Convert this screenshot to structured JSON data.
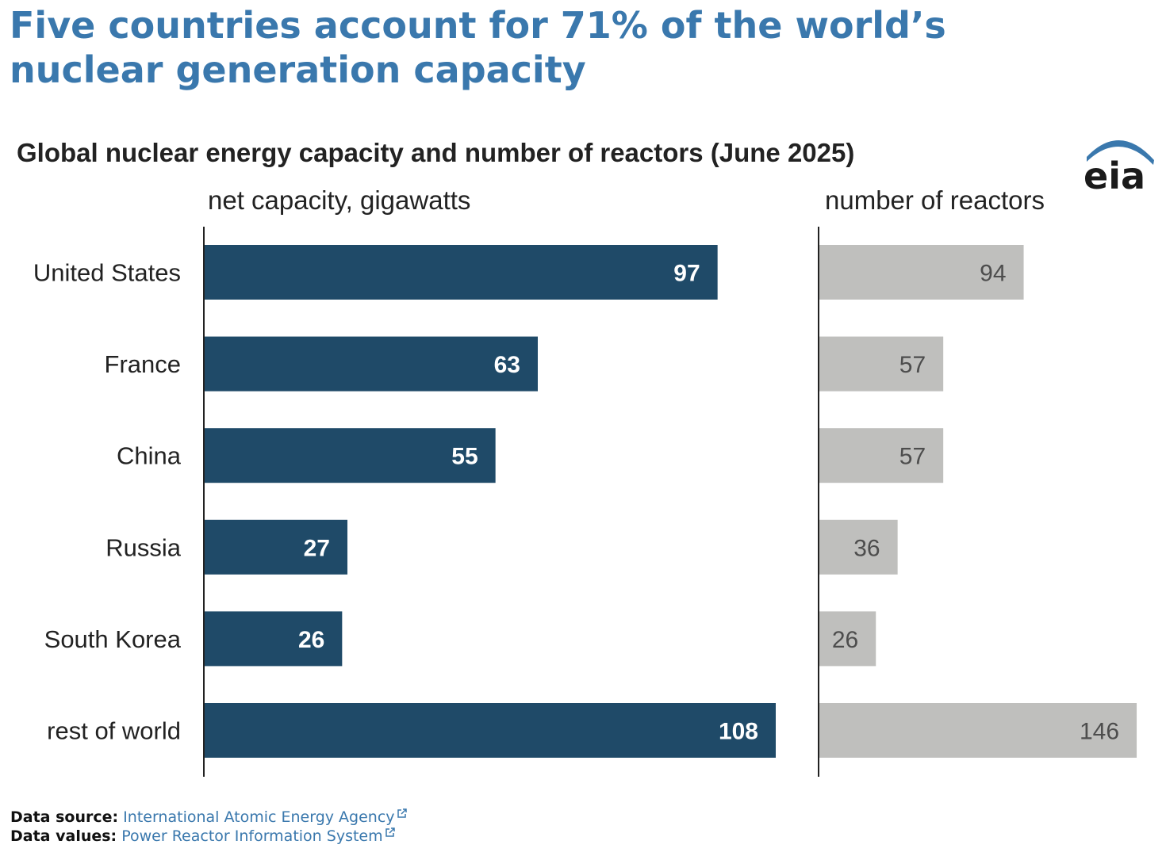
{
  "headline": "Five countries account for 71% of the world’s nuclear generation capacity",
  "colors": {
    "headline": "#3a78ad",
    "capacity_bar": "#1f4a68",
    "reactor_bar": "#bfbfbd",
    "capacity_label": "#ffffff",
    "reactor_label": "#4d4d4d",
    "link": "#3a78ad"
  },
  "logo": {
    "text": "eia",
    "icon": "eia-logo-arc"
  },
  "chart_data": {
    "type": "bar",
    "orientation": "horizontal",
    "title": "Global nuclear energy capacity and number of reactors (June 2025)",
    "categories": [
      "United States",
      "France",
      "China",
      "Russia",
      "South Korea",
      "rest of world"
    ],
    "panels": [
      {
        "name": "net capacity, gigawatts",
        "values": [
          97,
          63,
          55,
          27,
          26,
          108
        ],
        "xlim": [
          0,
          111
        ],
        "color": "#1f4a68"
      },
      {
        "name": "number of reactors",
        "values": [
          94,
          57,
          57,
          36,
          26,
          146
        ],
        "xlim": [
          0,
          150
        ],
        "color": "#bfbfbd"
      }
    ],
    "grid": false,
    "legend": "none",
    "data_labels": true
  },
  "footer": {
    "source_label": "Data source:",
    "source_link": "International Atomic Energy Agency",
    "values_label": "Data values:",
    "values_link": "Power Reactor Information System",
    "link_icon": "external-link-icon"
  }
}
